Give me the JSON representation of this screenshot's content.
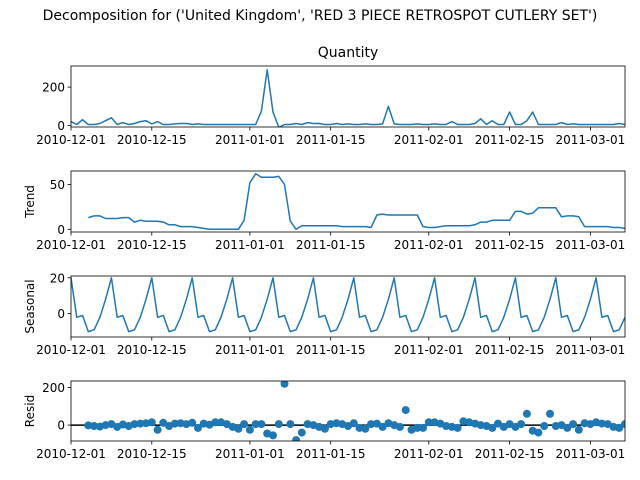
{
  "figure": {
    "title": "Decomposition for ('United Kingdom', 'RED 3 PIECE RETROSPOT CUTLERY SET')"
  },
  "colors": {
    "series": "#1f77b4",
    "axis": "#000000",
    "background": "#ffffff"
  },
  "chart_data": [
    {
      "type": "line",
      "panel": "observed",
      "title": "Quantity",
      "ylabel": "",
      "ylim": [
        -8,
        310
      ],
      "yticks": [
        0,
        200
      ],
      "xlim": [
        "2010-12-01",
        "2011-03-07"
      ],
      "xticks": [
        "2010-12-01",
        "2010-12-15",
        "2011-01-01",
        "2011-01-15",
        "2011-02-01",
        "2011-02-15",
        "2011-03-01"
      ],
      "x": [
        "2010-12-01",
        "2010-12-02",
        "2010-12-03",
        "2010-12-04",
        "2010-12-05",
        "2010-12-06",
        "2010-12-07",
        "2010-12-08",
        "2010-12-09",
        "2010-12-10",
        "2010-12-11",
        "2010-12-12",
        "2010-12-13",
        "2010-12-14",
        "2010-12-15",
        "2010-12-16",
        "2010-12-17",
        "2010-12-18",
        "2010-12-19",
        "2010-12-20",
        "2010-12-21",
        "2010-12-22",
        "2010-12-23",
        "2010-12-24",
        "2010-12-25",
        "2010-12-26",
        "2010-12-27",
        "2010-12-28",
        "2010-12-29",
        "2010-12-30",
        "2010-12-31",
        "2011-01-01",
        "2011-01-02",
        "2011-01-03",
        "2011-01-04",
        "2011-01-05",
        "2011-01-06",
        "2011-01-07",
        "2011-01-08",
        "2011-01-09",
        "2011-01-10",
        "2011-01-11",
        "2011-01-12",
        "2011-01-13",
        "2011-01-14",
        "2011-01-15",
        "2011-01-16",
        "2011-01-17",
        "2011-01-18",
        "2011-01-19",
        "2011-01-20",
        "2011-01-21",
        "2011-01-22",
        "2011-01-23",
        "2011-01-24",
        "2011-01-25",
        "2011-01-26",
        "2011-01-27",
        "2011-01-28",
        "2011-01-29",
        "2011-01-30",
        "2011-01-31",
        "2011-02-01",
        "2011-02-02",
        "2011-02-03",
        "2011-02-04",
        "2011-02-05",
        "2011-02-06",
        "2011-02-07",
        "2011-02-08",
        "2011-02-09",
        "2011-02-10",
        "2011-02-11",
        "2011-02-12",
        "2011-02-13",
        "2011-02-14",
        "2011-02-15",
        "2011-02-16",
        "2011-02-17",
        "2011-02-18",
        "2011-02-19",
        "2011-02-20",
        "2011-02-21",
        "2011-02-22",
        "2011-02-23",
        "2011-02-24",
        "2011-02-25",
        "2011-02-26",
        "2011-02-27",
        "2011-02-28",
        "2011-03-01",
        "2011-03-02",
        "2011-03-03",
        "2011-03-04",
        "2011-03-05",
        "2011-03-06",
        "2011-03-07"
      ],
      "values": [
        20,
        5,
        30,
        5,
        5,
        10,
        25,
        40,
        5,
        15,
        5,
        10,
        20,
        25,
        8,
        20,
        5,
        5,
        8,
        10,
        10,
        5,
        8,
        5,
        5,
        5,
        5,
        5,
        5,
        5,
        5,
        5,
        5,
        75,
        290,
        70,
        -10,
        5,
        5,
        10,
        5,
        15,
        10,
        10,
        5,
        5,
        10,
        5,
        8,
        5,
        5,
        8,
        5,
        5,
        8,
        100,
        8,
        5,
        5,
        5,
        8,
        5,
        5,
        8,
        5,
        5,
        20,
        5,
        5,
        5,
        10,
        35,
        5,
        25,
        5,
        5,
        70,
        5,
        5,
        25,
        70,
        5,
        5,
        5,
        5,
        15,
        5,
        8,
        5,
        5,
        5,
        5,
        5,
        5,
        5,
        10,
        5
      ]
    },
    {
      "type": "line",
      "panel": "trend",
      "title": "",
      "ylabel": "Trend",
      "ylim": [
        -3,
        65
      ],
      "yticks": [
        0,
        50
      ],
      "x_start": "2010-12-04",
      "values": [
        13,
        15,
        15,
        12,
        12,
        12,
        13,
        13,
        8,
        10,
        9,
        9,
        9,
        8,
        5,
        5,
        3,
        3,
        3,
        2,
        1,
        0,
        0,
        0,
        0,
        0,
        0,
        10,
        52,
        62,
        58,
        58,
        58,
        59,
        50,
        9,
        0,
        4,
        4,
        4,
        4,
        4,
        4,
        4,
        3,
        3,
        3,
        3,
        3,
        2,
        16,
        17,
        16,
        16,
        16,
        16,
        16,
        16,
        3,
        2,
        2,
        3,
        4,
        4,
        4,
        4,
        4,
        5,
        8,
        8,
        10,
        10,
        10,
        10,
        20,
        20,
        17,
        18,
        24,
        24,
        24,
        24,
        14,
        15,
        15,
        14,
        3,
        3,
        3,
        3,
        3,
        2,
        2,
        1,
        1,
        1,
        1,
        1,
        1,
        2,
        3
      ]
    },
    {
      "type": "line",
      "panel": "seasonal",
      "title": "",
      "ylabel": "Seasonal",
      "ylim": [
        -13,
        21
      ],
      "yticks": [
        0,
        20
      ],
      "period_values": [
        20,
        -2,
        -1,
        -10,
        -9,
        -2,
        8
      ]
    },
    {
      "type": "scatter",
      "panel": "resid",
      "title": "",
      "ylabel": "Resid",
      "ylim": [
        -85,
        235
      ],
      "yticks": [
        0,
        200
      ],
      "zero_line": true,
      "x_start": "2010-12-04",
      "values": [
        -2,
        -5,
        -8,
        0,
        5,
        -10,
        3,
        -5,
        5,
        8,
        10,
        15,
        -25,
        12,
        -5,
        8,
        10,
        5,
        12,
        -15,
        8,
        2,
        15,
        15,
        5,
        -10,
        -20,
        5,
        -25,
        5,
        5,
        -45,
        -55,
        5,
        220,
        5,
        -80,
        -40,
        5,
        0,
        -10,
        -20,
        5,
        10,
        5,
        -5,
        10,
        -15,
        -20,
        5,
        8,
        -10,
        10,
        0,
        -10,
        80,
        -25,
        -15,
        -15,
        15,
        15,
        8,
        -5,
        -10,
        -15,
        20,
        15,
        8,
        0,
        -5,
        -15,
        8,
        -10,
        5,
        -10,
        5,
        60,
        -30,
        -40,
        -5,
        60,
        -5,
        0,
        -15,
        5,
        -25,
        10,
        5,
        15,
        8,
        5,
        -10,
        -15,
        5,
        10,
        5,
        15
      ]
    }
  ]
}
